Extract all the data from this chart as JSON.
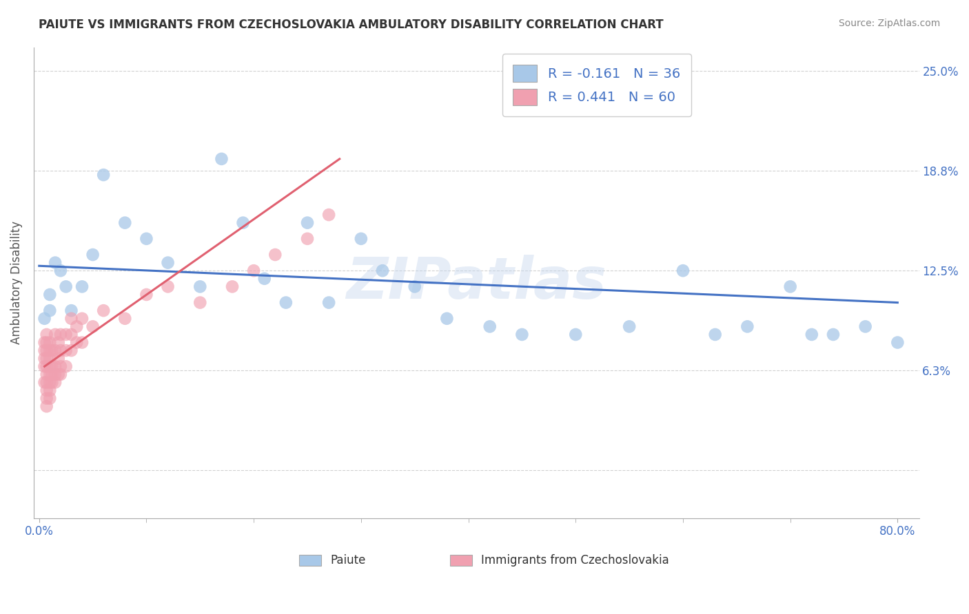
{
  "title": "PAIUTE VS IMMIGRANTS FROM CZECHOSLOVAKIA AMBULATORY DISABILITY CORRELATION CHART",
  "source": "Source: ZipAtlas.com",
  "ylabel": "Ambulatory Disability",
  "xlim": [
    -0.005,
    0.82
  ],
  "ylim": [
    -0.03,
    0.265
  ],
  "yticks": [
    0.0,
    0.0625,
    0.125,
    0.1875,
    0.25
  ],
  "ytick_labels": [
    "",
    "6.3%",
    "12.5%",
    "18.8%",
    "25.0%"
  ],
  "xtick_left_label": "0.0%",
  "xtick_right_label": "80.0%",
  "xtick_left_val": 0.0,
  "xtick_right_val": 0.8,
  "legend_R1": "R = -0.161",
  "legend_N1": "N = 36",
  "legend_R2": "R = 0.441",
  "legend_N2": "N = 60",
  "color_blue": "#A8C8E8",
  "color_pink": "#F0A0B0",
  "color_blue_line": "#4472C4",
  "color_pink_line": "#E06070",
  "color_text_blue": "#4472C4",
  "watermark": "ZIPatlas",
  "background_color": "#FFFFFF",
  "paiute_x": [
    0.005,
    0.01,
    0.01,
    0.015,
    0.02,
    0.025,
    0.03,
    0.04,
    0.05,
    0.06,
    0.08,
    0.1,
    0.12,
    0.15,
    0.17,
    0.19,
    0.21,
    0.23,
    0.25,
    0.27,
    0.3,
    0.32,
    0.35,
    0.38,
    0.42,
    0.45,
    0.5,
    0.55,
    0.6,
    0.63,
    0.66,
    0.7,
    0.72,
    0.74,
    0.77,
    0.8
  ],
  "paiute_y": [
    0.095,
    0.11,
    0.1,
    0.13,
    0.125,
    0.115,
    0.1,
    0.115,
    0.135,
    0.185,
    0.155,
    0.145,
    0.13,
    0.115,
    0.195,
    0.155,
    0.12,
    0.105,
    0.155,
    0.105,
    0.145,
    0.125,
    0.115,
    0.095,
    0.09,
    0.085,
    0.085,
    0.09,
    0.125,
    0.085,
    0.09,
    0.115,
    0.085,
    0.085,
    0.09,
    0.08
  ],
  "immig_x": [
    0.005,
    0.005,
    0.005,
    0.005,
    0.005,
    0.007,
    0.007,
    0.007,
    0.007,
    0.007,
    0.007,
    0.007,
    0.007,
    0.007,
    0.007,
    0.01,
    0.01,
    0.01,
    0.01,
    0.01,
    0.01,
    0.01,
    0.01,
    0.012,
    0.012,
    0.012,
    0.012,
    0.015,
    0.015,
    0.015,
    0.015,
    0.015,
    0.018,
    0.018,
    0.018,
    0.02,
    0.02,
    0.02,
    0.02,
    0.025,
    0.025,
    0.025,
    0.03,
    0.03,
    0.03,
    0.035,
    0.035,
    0.04,
    0.04,
    0.05,
    0.06,
    0.08,
    0.1,
    0.12,
    0.15,
    0.18,
    0.2,
    0.22,
    0.25,
    0.27
  ],
  "immig_y": [
    0.055,
    0.065,
    0.07,
    0.075,
    0.08,
    0.04,
    0.045,
    0.05,
    0.055,
    0.06,
    0.065,
    0.07,
    0.075,
    0.08,
    0.085,
    0.045,
    0.05,
    0.055,
    0.06,
    0.065,
    0.07,
    0.075,
    0.08,
    0.055,
    0.06,
    0.065,
    0.075,
    0.055,
    0.06,
    0.065,
    0.075,
    0.085,
    0.06,
    0.07,
    0.08,
    0.06,
    0.065,
    0.075,
    0.085,
    0.065,
    0.075,
    0.085,
    0.075,
    0.085,
    0.095,
    0.08,
    0.09,
    0.08,
    0.095,
    0.09,
    0.1,
    0.095,
    0.11,
    0.115,
    0.105,
    0.115,
    0.125,
    0.135,
    0.145,
    0.16
  ],
  "blue_line_x": [
    0.0,
    0.8
  ],
  "blue_line_y": [
    0.128,
    0.105
  ],
  "pink_line_x": [
    0.005,
    0.28
  ],
  "pink_line_y": [
    0.065,
    0.195
  ]
}
